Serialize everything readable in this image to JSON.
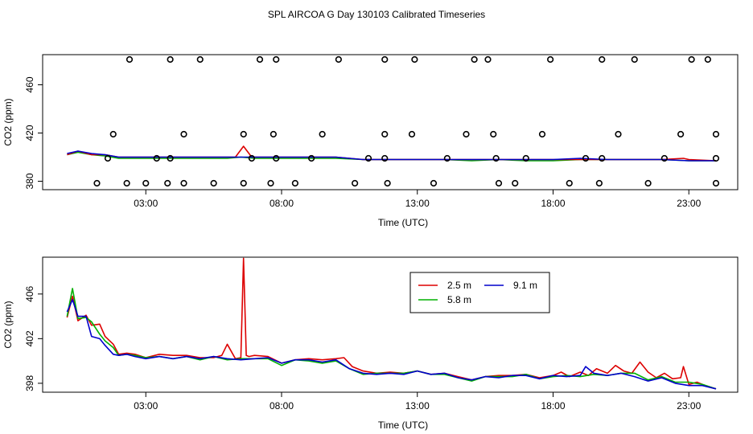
{
  "title": "SPL AIRCOA G  Day 130103  Calibrated Timeseries",
  "chart_data": [
    {
      "type": "scatter",
      "xlabel": "Time (UTC)",
      "ylabel": "CO2 (ppm)",
      "xlim": [
        -0.8,
        24.8
      ],
      "ylim": [
        373,
        485
      ],
      "xticks": [
        3,
        8,
        13,
        18,
        23
      ],
      "xtick_labels": [
        "03:00",
        "08:00",
        "13:00",
        "18:00",
        "23:00"
      ],
      "yticks": [
        380,
        420,
        460
      ],
      "ytick_labels": [
        "380",
        "420",
        "460"
      ],
      "grid": false,
      "legend": "none",
      "line_series": [
        {
          "color": "#00b000",
          "x": [
            0.1,
            0.5,
            1.0,
            1.5,
            2.0,
            3.0,
            4.0,
            5.0,
            6.0,
            6.5,
            7.0,
            7.5,
            8.0,
            9.0,
            10.0,
            11.0,
            12.0,
            13.0,
            14.0,
            15.0,
            16.0,
            17.0,
            18.0,
            19.0,
            20.0,
            21.0,
            22.0,
            23.0,
            24.0
          ],
          "y": [
            402,
            404,
            402,
            401,
            399,
            399,
            399,
            399,
            399,
            400,
            399,
            399,
            399,
            399,
            399,
            398,
            398,
            398,
            398,
            397,
            398,
            397,
            397,
            398,
            398,
            398,
            398,
            397,
            397
          ]
        },
        {
          "color": "#dd0000",
          "x": [
            0.1,
            0.5,
            1.0,
            1.5,
            2.0,
            3.0,
            4.0,
            5.0,
            6.0,
            6.3,
            6.6,
            6.9,
            7.5,
            8.0,
            9.0,
            10.0,
            11.0,
            12.0,
            13.0,
            14.0,
            15.0,
            16.0,
            17.0,
            18.0,
            19.0,
            20.0,
            21.0,
            22.0,
            22.8,
            23.0,
            24.0
          ],
          "y": [
            402,
            405,
            402,
            402,
            400,
            400,
            400,
            400,
            400,
            400,
            409,
            400,
            400,
            400,
            400,
            400,
            398,
            398,
            398,
            398,
            398,
            398,
            398,
            398,
            398,
            398,
            398,
            398,
            399,
            398,
            397
          ]
        },
        {
          "color": "#0000cc",
          "x": [
            0.1,
            0.5,
            1.0,
            1.5,
            2.0,
            3.0,
            4.0,
            5.0,
            6.0,
            7.0,
            8.0,
            9.0,
            10.0,
            11.0,
            12.0,
            13.0,
            14.0,
            15.0,
            16.0,
            17.0,
            18.0,
            19.0,
            20.0,
            21.0,
            22.0,
            23.0,
            24.0
          ],
          "y": [
            403,
            405,
            403,
            402,
            400,
            400,
            400,
            400,
            400,
            400,
            400,
            400,
            400,
            398,
            398,
            398,
            398,
            398,
            398,
            398,
            398,
            399,
            398,
            398,
            398,
            397,
            397
          ]
        }
      ],
      "points": {
        "x": [
          1.2,
          2.3,
          3.0,
          3.8,
          4.4,
          5.5,
          6.6,
          7.6,
          8.5,
          10.7,
          11.9,
          13.6,
          16.0,
          16.6,
          18.6,
          19.7,
          21.5,
          24.0,
          1.8,
          4.4,
          6.6,
          7.7,
          9.5,
          11.8,
          12.8,
          14.8,
          15.8,
          17.6,
          20.4,
          22.7,
          24.0,
          1.6,
          3.4,
          3.9,
          6.9,
          7.8,
          9.1,
          11.2,
          11.8,
          14.1,
          15.9,
          17.0,
          19.2,
          19.8,
          22.1,
          24.0,
          2.4,
          3.9,
          5.0,
          7.2,
          7.8,
          10.1,
          11.8,
          12.9,
          15.1,
          15.6,
          17.9,
          19.8,
          21.0,
          23.1,
          23.7
        ],
        "y": [
          375,
          375,
          375,
          375,
          375,
          375,
          375,
          375,
          375,
          375,
          375,
          375,
          375,
          375,
          375,
          375,
          375,
          375,
          419,
          419,
          419,
          419,
          419,
          419,
          419,
          419,
          419,
          419,
          419,
          419,
          419,
          399,
          399,
          399,
          399,
          399,
          399,
          399,
          399,
          399,
          399,
          399,
          399,
          399,
          399,
          399,
          486,
          486,
          486,
          486,
          486,
          486,
          486,
          486,
          486,
          486,
          486,
          486,
          486,
          486,
          486
        ]
      }
    },
    {
      "type": "line",
      "xlabel": "Time (UTC)",
      "ylabel": "CO2 (ppm)",
      "xlim": [
        -0.8,
        24.8
      ],
      "ylim": [
        397.2,
        409.3
      ],
      "xticks": [
        3,
        8,
        13,
        18,
        23
      ],
      "xtick_labels": [
        "03:00",
        "08:00",
        "13:00",
        "18:00",
        "23:00"
      ],
      "yticks": [
        398,
        402,
        406
      ],
      "ytick_labels": [
        "398",
        "402",
        "406"
      ],
      "grid": false,
      "legend": "top-center",
      "series": [
        {
          "name": "2.5 m",
          "color": "#dd0000",
          "x": [
            0.1,
            0.3,
            0.5,
            0.8,
            1.0,
            1.3,
            1.5,
            1.8,
            2.0,
            2.3,
            2.6,
            3.0,
            3.5,
            4.0,
            4.5,
            5.0,
            5.5,
            5.8,
            6.0,
            6.3,
            6.5,
            6.6,
            6.7,
            6.8,
            7.0,
            7.5,
            8.0,
            8.5,
            9.0,
            9.5,
            10.0,
            10.3,
            10.6,
            11.0,
            11.5,
            12.0,
            12.5,
            13.0,
            13.5,
            14.0,
            14.5,
            15.0,
            15.5,
            16.0,
            16.5,
            17.0,
            17.5,
            18.0,
            18.3,
            18.6,
            19.0,
            19.3,
            19.6,
            20.0,
            20.3,
            20.6,
            20.9,
            21.2,
            21.5,
            21.8,
            22.1,
            22.4,
            22.7,
            22.8,
            23.0,
            23.3,
            23.6,
            24.0
          ],
          "y": [
            403.9,
            405.8,
            403.6,
            404.1,
            403.2,
            403.3,
            402.2,
            401.5,
            400.6,
            400.7,
            400.6,
            400.3,
            400.6,
            400.5,
            400.5,
            400.3,
            400.3,
            400.5,
            401.5,
            400.2,
            400.3,
            409.2,
            400.5,
            400.4,
            400.5,
            400.4,
            399.8,
            400.1,
            400.2,
            400.1,
            400.2,
            400.3,
            399.5,
            399.1,
            398.9,
            399.0,
            398.9,
            399.1,
            398.8,
            398.9,
            398.6,
            398.3,
            398.6,
            398.7,
            398.7,
            398.8,
            398.5,
            398.7,
            399.0,
            398.6,
            399.0,
            398.7,
            399.3,
            398.9,
            399.6,
            399.1,
            398.9,
            399.9,
            399.0,
            398.5,
            398.9,
            398.4,
            398.5,
            399.5,
            397.9,
            398.1,
            397.8,
            397.5
          ]
        },
        {
          "name": "5.8 m",
          "color": "#00b000",
          "x": [
            0.1,
            0.3,
            0.5,
            0.8,
            1.0,
            1.3,
            1.5,
            1.8,
            2.0,
            2.3,
            2.6,
            3.0,
            3.5,
            4.0,
            4.5,
            5.0,
            5.5,
            6.0,
            6.5,
            7.0,
            7.5,
            8.0,
            8.5,
            9.0,
            9.5,
            10.0,
            10.5,
            11.0,
            11.5,
            12.0,
            12.5,
            13.0,
            13.5,
            14.0,
            14.5,
            15.0,
            15.5,
            16.0,
            16.5,
            17.0,
            17.5,
            18.0,
            18.5,
            19.0,
            19.5,
            20.0,
            20.5,
            21.0,
            21.5,
            22.0,
            22.5,
            23.0,
            23.5,
            24.0
          ],
          "y": [
            404.0,
            406.5,
            403.8,
            403.9,
            403.5,
            402.4,
            401.8,
            401.2,
            400.5,
            400.6,
            400.5,
            400.3,
            400.4,
            400.2,
            400.4,
            400.1,
            400.4,
            400.1,
            400.2,
            400.2,
            400.2,
            399.6,
            400.1,
            400.0,
            399.8,
            400.0,
            399.3,
            398.8,
            398.9,
            398.9,
            398.9,
            399.1,
            398.8,
            398.8,
            398.5,
            398.2,
            398.6,
            398.6,
            398.6,
            398.8,
            398.4,
            398.6,
            398.7,
            398.6,
            398.8,
            398.7,
            398.9,
            398.9,
            398.3,
            398.6,
            398.1,
            398.1,
            397.9,
            397.5
          ]
        },
        {
          "name": "9.1 m",
          "color": "#0000cc",
          "x": [
            0.1,
            0.3,
            0.5,
            0.8,
            1.0,
            1.3,
            1.5,
            1.8,
            2.0,
            2.3,
            2.6,
            3.0,
            3.5,
            4.0,
            4.5,
            5.0,
            5.5,
            6.0,
            6.5,
            7.0,
            7.5,
            8.0,
            8.5,
            9.0,
            9.5,
            10.0,
            10.5,
            11.0,
            11.5,
            12.0,
            12.5,
            13.0,
            13.5,
            14.0,
            14.5,
            15.0,
            15.5,
            16.0,
            16.5,
            17.0,
            17.5,
            18.0,
            18.5,
            19.0,
            19.2,
            19.5,
            20.0,
            20.5,
            21.0,
            21.5,
            22.0,
            22.5,
            23.0,
            23.5,
            24.0
          ],
          "y": [
            404.4,
            405.5,
            404.0,
            404.0,
            402.2,
            402.0,
            401.4,
            400.6,
            400.5,
            400.6,
            400.4,
            400.2,
            400.4,
            400.2,
            400.4,
            400.2,
            400.4,
            400.2,
            400.1,
            400.2,
            400.3,
            399.8,
            400.1,
            400.1,
            399.9,
            400.1,
            399.3,
            398.9,
            398.8,
            398.9,
            398.8,
            399.1,
            398.8,
            398.9,
            398.5,
            398.3,
            398.6,
            398.5,
            398.7,
            398.7,
            398.4,
            398.7,
            398.6,
            398.7,
            399.5,
            398.9,
            398.7,
            398.9,
            398.6,
            398.2,
            398.5,
            398.0,
            397.8,
            397.8,
            397.5
          ]
        }
      ]
    }
  ]
}
